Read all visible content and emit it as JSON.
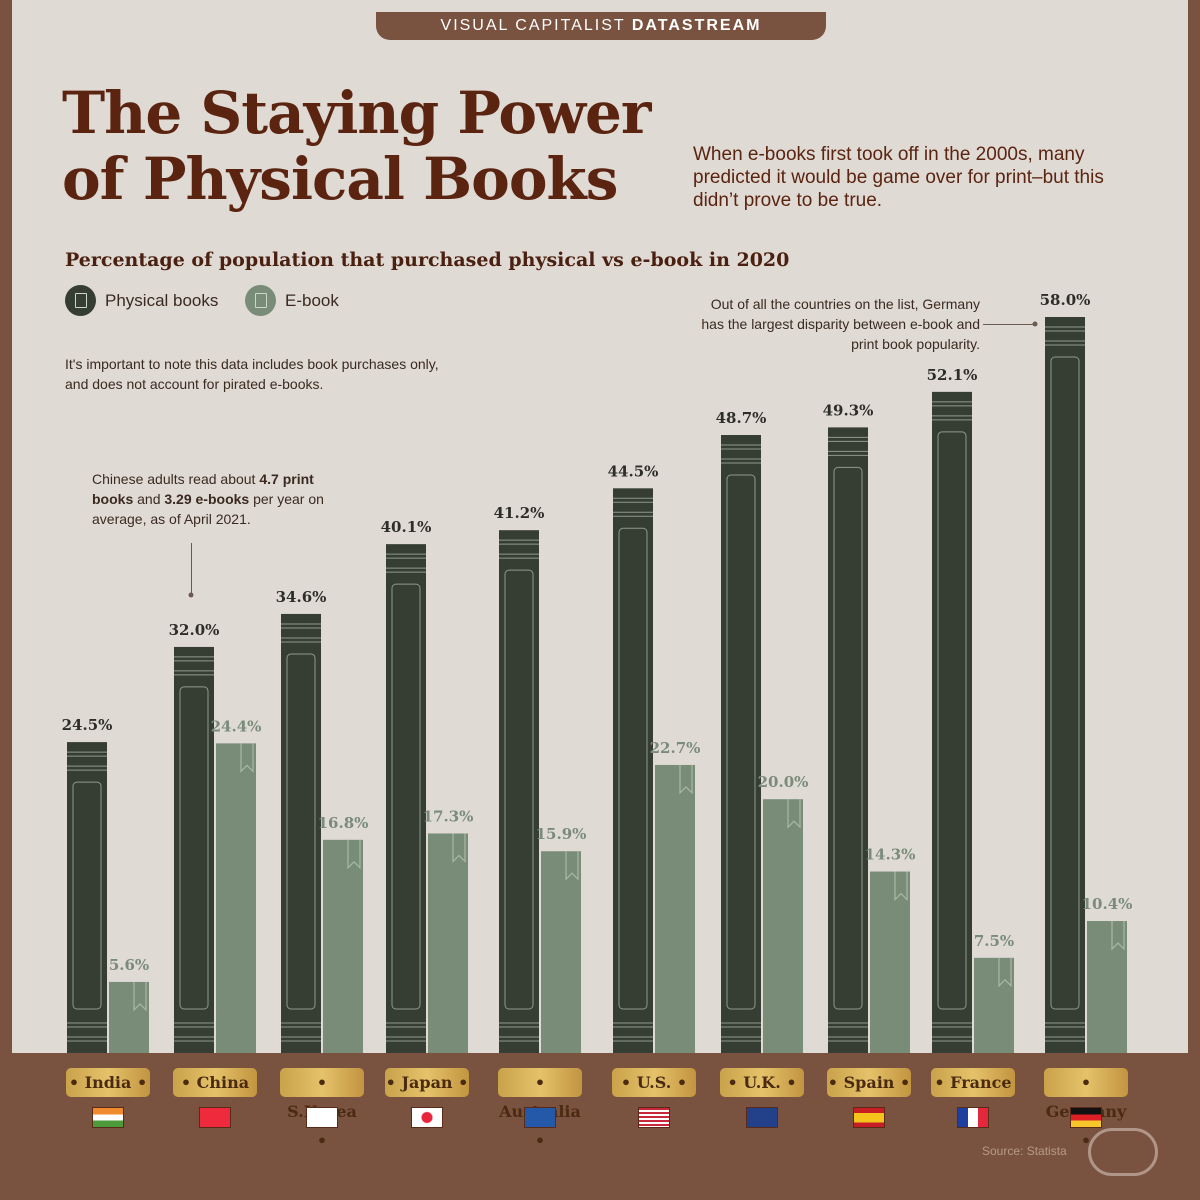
{
  "brand": {
    "prefix": "VISUAL CAPITALIST",
    "suffix": "DATASTREAM"
  },
  "title_line1": "The Staying Power",
  "title_line2": "of Physical Books",
  "intro": "When e-books first took off in the 2000s, many predicted it would be game over for print–but this didn’t prove to be true.",
  "notes": {
    "piracy": "It's important to note this data includes book purchases only, and does not account for pirated e-books.",
    "germany": "Out of all the countries on the list, Germany has the largest disparity  between e-book and print book popularity.",
    "china_pre": "Chinese adults read about ",
    "china_b1": "4.7 print books",
    "china_mid": " and ",
    "china_b2": "3.29 e-books",
    "china_post": " per year on average, as of April 2021."
  },
  "source": "Source: Statista",
  "chart_data": {
    "type": "bar",
    "title": "Percentage of population that purchased physical vs e-book in 2020",
    "categories": [
      "India",
      "China",
      "S.Korea",
      "Japan",
      "Australia",
      "U.S.",
      "U.K.",
      "Spain",
      "France",
      "Germany"
    ],
    "series": [
      {
        "name": "Physical books",
        "color": "#363d33",
        "values": [
          24.5,
          32.0,
          34.6,
          40.1,
          41.2,
          44.5,
          48.7,
          49.3,
          52.1,
          58.0
        ]
      },
      {
        "name": "E-book",
        "color": "#788c77",
        "values": [
          5.6,
          24.4,
          16.8,
          17.3,
          15.9,
          22.7,
          20.0,
          14.3,
          7.5,
          10.4
        ]
      }
    ],
    "ylim": [
      0,
      58
    ],
    "grid": false,
    "legend": "top-left",
    "value_format": "%"
  },
  "flags": [
    "india",
    "china",
    "south-korea",
    "japan",
    "australia",
    "usa",
    "uk",
    "spain",
    "france",
    "germany"
  ]
}
